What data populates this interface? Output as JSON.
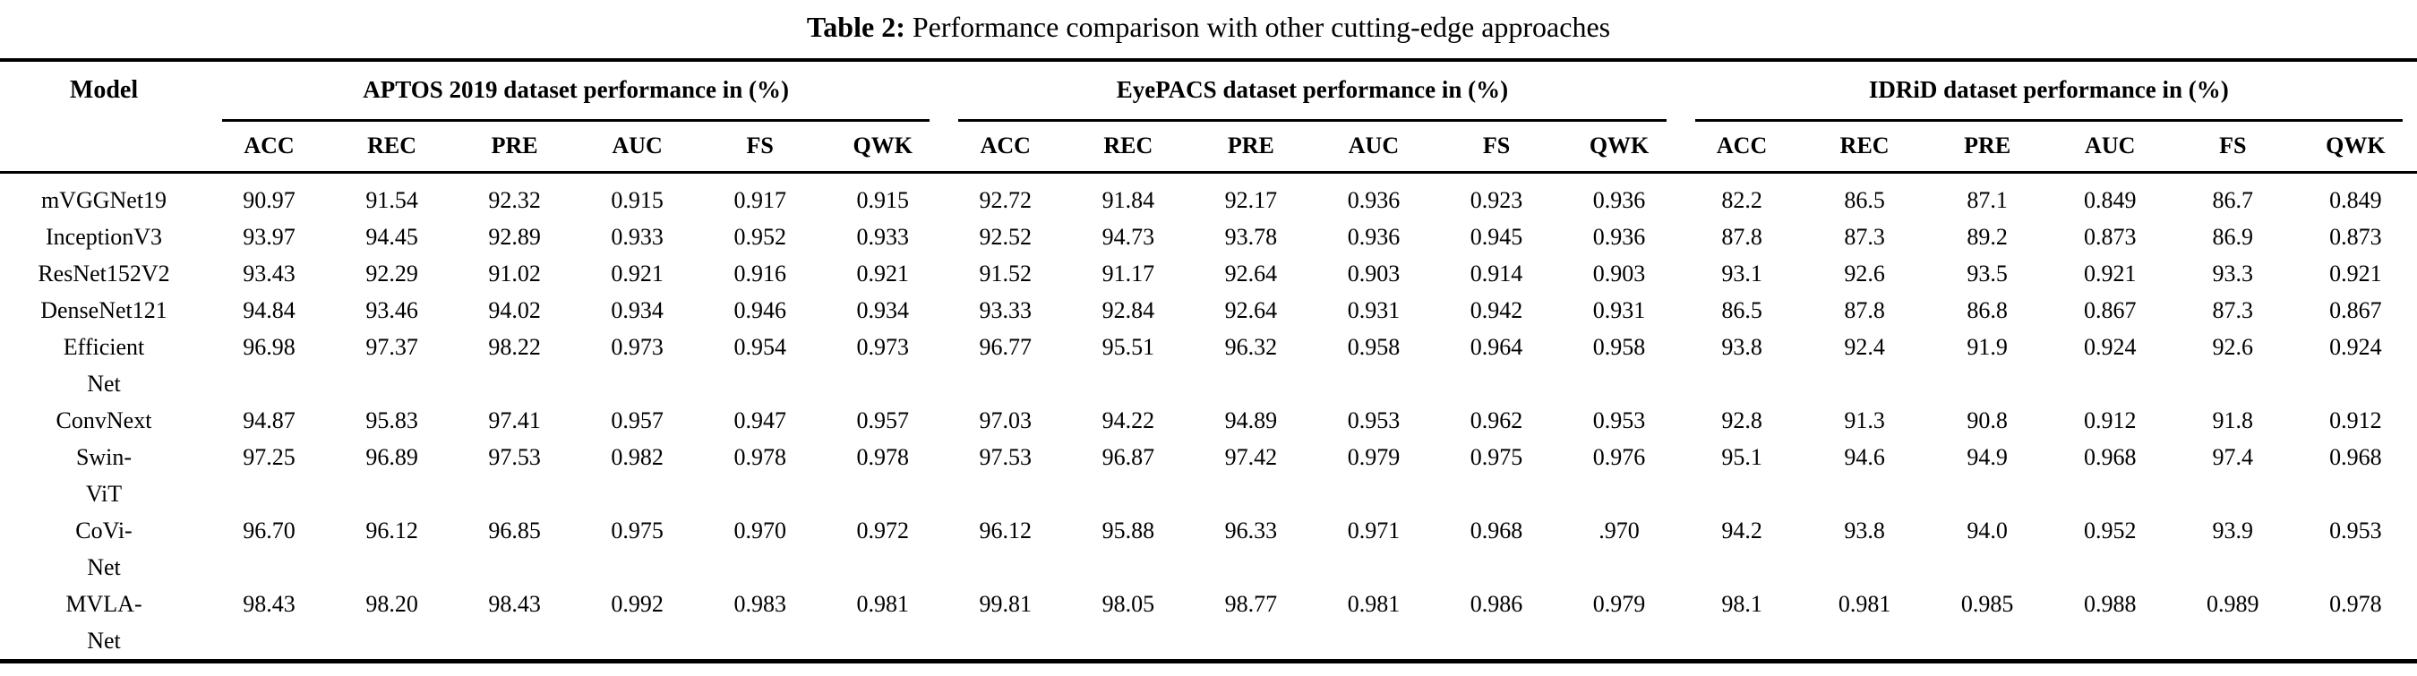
{
  "caption": {
    "label": "Table 2:",
    "text": " Performance comparison with other cutting-edge approaches"
  },
  "table": {
    "model_header": "Model",
    "groups": [
      {
        "label": "APTOS 2019 dataset performance in (%)"
      },
      {
        "label": "EyePACS dataset performance in (%)"
      },
      {
        "label": "IDRiD dataset performance in (%)"
      }
    ],
    "metrics": [
      "ACC",
      "REC",
      "PRE",
      "AUC",
      "FS",
      "QWK"
    ],
    "rows": [
      {
        "model": "mVGGNet19",
        "aptos": [
          "90.97",
          "91.54",
          "92.32",
          "0.915",
          "0.917",
          "0.915"
        ],
        "eyepacs": [
          "92.72",
          "91.84",
          "92.17",
          "0.936",
          "0.923",
          "0.936"
        ],
        "idrid": [
          "82.2",
          "86.5",
          "87.1",
          "0.849",
          "86.7",
          "0.849"
        ]
      },
      {
        "model": "InceptionV3",
        "aptos": [
          "93.97",
          "94.45",
          "92.89",
          "0.933",
          "0.952",
          "0.933"
        ],
        "eyepacs": [
          "92.52",
          "94.73",
          "93.78",
          "0.936",
          "0.945",
          "0.936"
        ],
        "idrid": [
          "87.8",
          "87.3",
          "89.2",
          "0.873",
          "86.9",
          "0.873"
        ]
      },
      {
        "model": "ResNet152V2",
        "aptos": [
          "93.43",
          "92.29",
          "91.02",
          "0.921",
          "0.916",
          "0.921"
        ],
        "eyepacs": [
          "91.52",
          "91.17",
          "92.64",
          "0.903",
          "0.914",
          "0.903"
        ],
        "idrid": [
          "93.1",
          "92.6",
          "93.5",
          "0.921",
          "93.3",
          "0.921"
        ]
      },
      {
        "model": "DenseNet121",
        "aptos": [
          "94.84",
          "93.46",
          "94.02",
          "0.934",
          "0.946",
          "0.934"
        ],
        "eyepacs": [
          "93.33",
          "92.84",
          "92.64",
          "0.931",
          "0.942",
          "0.931"
        ],
        "idrid": [
          "86.5",
          "87.8",
          "86.8",
          "0.867",
          "87.3",
          "0.867"
        ]
      },
      {
        "model": "Efficient\nNet",
        "aptos": [
          "96.98",
          "97.37",
          "98.22",
          "0.973",
          "0.954",
          "0.973"
        ],
        "eyepacs": [
          "96.77",
          "95.51",
          "96.32",
          "0.958",
          "0.964",
          "0.958"
        ],
        "idrid": [
          "93.8",
          "92.4",
          "91.9",
          "0.924",
          "92.6",
          "0.924"
        ]
      },
      {
        "model": "ConvNext",
        "aptos": [
          "94.87",
          "95.83",
          "97.41",
          "0.957",
          "0.947",
          "0.957"
        ],
        "eyepacs": [
          "97.03",
          "94.22",
          "94.89",
          "0.953",
          "0.962",
          "0.953"
        ],
        "idrid": [
          "92.8",
          "91.3",
          "90.8",
          "0.912",
          "91.8",
          "0.912"
        ]
      },
      {
        "model": "Swin-\nViT",
        "aptos": [
          "97.25",
          "96.89",
          "97.53",
          "0.982",
          "0.978",
          "0.978"
        ],
        "eyepacs": [
          "97.53",
          "96.87",
          "97.42",
          "0.979",
          "0.975",
          "0.976"
        ],
        "idrid": [
          "95.1",
          "94.6",
          "94.9",
          "0.968",
          "97.4",
          "0.968"
        ]
      },
      {
        "model": "CoVi-\nNet",
        "aptos": [
          "96.70",
          "96.12",
          "96.85",
          "0.975",
          "0.970",
          "0.972"
        ],
        "eyepacs": [
          "96.12",
          "95.88",
          "96.33",
          "0.971",
          "0.968",
          ".970"
        ],
        "idrid": [
          "94.2",
          "93.8",
          "94.0",
          "0.952",
          "93.9",
          "0.953"
        ]
      },
      {
        "model": "MVLA-\nNet",
        "aptos": [
          "98.43",
          "98.20",
          "98.43",
          "0.992",
          "0.983",
          "0.981"
        ],
        "eyepacs": [
          "99.81",
          "98.05",
          "98.77",
          "0.981",
          "0.986",
          "0.979"
        ],
        "idrid": [
          "98.1",
          "0.981",
          "0.985",
          "0.988",
          "0.989",
          "0.978"
        ]
      }
    ]
  }
}
